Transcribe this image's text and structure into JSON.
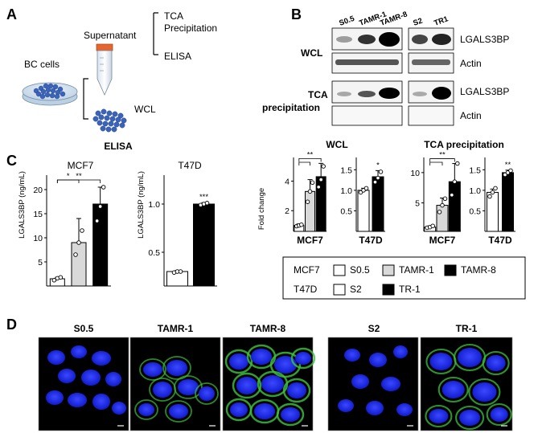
{
  "panels": {
    "a": "A",
    "b": "B",
    "c": "C",
    "d": "D"
  },
  "panel_a": {
    "supernatant": "Supernatant",
    "tca_line1": "TCA",
    "tca_line2": "Precipitation",
    "elisa": "ELISA",
    "bc_cells": "BC cells",
    "wcl": "WCL"
  },
  "panel_b": {
    "lanes_mcf7": [
      "S0.5",
      "TAMR-1",
      "TAMR-8"
    ],
    "lanes_t47d": [
      "S2",
      "TR1"
    ],
    "row_wcl": "WCL",
    "row_tca_line1": "TCA",
    "row_tca_line2": "precipitation",
    "band_lgals3bp": "LGALS3BP",
    "band_actin": "Actin",
    "wcl_chart_title": "WCL",
    "tca_chart_title": "TCA precipitation",
    "fold_change": "Fold change",
    "legend": {
      "mcf7": "MCF7",
      "t47d": "T47D",
      "s05": "S0.5",
      "tamr1": "TAMR-1",
      "tamr8": "TAMR-8",
      "s2": "S2",
      "tr1": "TR-1"
    }
  },
  "panel_c": {
    "title": "ELISA",
    "mcf7": "MCF7",
    "t47d": "T47D",
    "ylabel": "LGALS3BP (ng/mL)"
  },
  "panel_d": {
    "labels": [
      "S0.5",
      "TAMR-1",
      "TAMR-8",
      "S2",
      "TR-1"
    ]
  },
  "colors": {
    "white": "#ffffff",
    "gray": "#d9d9d9",
    "black": "#000000",
    "nucleus": "#1a2cff",
    "membrane": "#3fbf3f"
  },
  "chart_data": [
    {
      "type": "bar",
      "panel": "C",
      "title": "MCF7",
      "ylabel": "LGALS3BP (ng/mL)",
      "categories": [
        "S0.5",
        "TAMR-1",
        "TAMR-8"
      ],
      "values": [
        1.5,
        9,
        17
      ],
      "errors": [
        0.3,
        5,
        3.5
      ],
      "points": [
        [
          1.2,
          1.6,
          1.8
        ],
        [
          6.5,
          9.0,
          11.5
        ],
        [
          13.5,
          16.5,
          20.5
        ]
      ],
      "yticks": [
        5,
        10,
        15,
        20
      ],
      "ylim": [
        0,
        23
      ],
      "significance": [
        {
          "from": 0,
          "to": 1,
          "label": "*"
        },
        {
          "from": 0,
          "to": 2,
          "label": "**"
        }
      ]
    },
    {
      "type": "bar",
      "panel": "C",
      "title": "T47D",
      "ylabel": "LGALS3BP (ng/mL)",
      "categories": [
        "S2",
        "TR-1"
      ],
      "values": [
        0.3,
        1.0
      ],
      "errors": [
        0.01,
        0.015
      ],
      "points": [
        [
          0.29,
          0.3,
          0.3
        ],
        [
          0.99,
          1.0,
          1.01
        ]
      ],
      "yticks": [
        0.5,
        1.0
      ],
      "ylim": [
        0.15,
        1.3
      ],
      "significance": [
        {
          "at": 1,
          "label": "***"
        }
      ]
    },
    {
      "type": "bar",
      "panel": "B",
      "group": "WCL",
      "title": "MCF7",
      "ylabel": "Fold change",
      "categories": [
        "S0.5",
        "TAMR-1",
        "TAMR-8"
      ],
      "values": [
        1.0,
        3.3,
        4.3
      ],
      "errors": [
        0.1,
        0.8,
        0.9
      ],
      "points": [
        [
          0.95,
          1.0,
          1.05
        ],
        [
          2.6,
          3.3,
          3.9
        ],
        [
          3.6,
          4.1,
          5.0
        ]
      ],
      "yticks": [
        2,
        4
      ],
      "ylim": [
        0.6,
        5.6
      ],
      "significance": [
        {
          "from": 0,
          "to": 1,
          "label": ""
        },
        {
          "from": 0,
          "to": 2,
          "label": "**"
        }
      ]
    },
    {
      "type": "bar",
      "panel": "B",
      "group": "WCL",
      "title": "T47D",
      "categories": [
        "S2",
        "TR-1"
      ],
      "values": [
        1.0,
        1.33
      ],
      "errors": [
        0.05,
        0.15
      ],
      "points": [
        [
          0.95,
          1.0,
          1.05
        ],
        [
          1.2,
          1.3,
          1.45
        ]
      ],
      "yticks": [
        0.5,
        1.0,
        1.5
      ],
      "ylim": [
        0,
        1.8
      ],
      "significance": [
        {
          "at": 1,
          "label": "*"
        }
      ]
    },
    {
      "type": "bar",
      "panel": "B",
      "group": "TCA precipitation",
      "title": "MCF7",
      "categories": [
        "S0.5",
        "TAMR-1",
        "TAMR-8"
      ],
      "values": [
        1.0,
        4.6,
        8.5
      ],
      "errors": [
        0.2,
        1.2,
        3.0
      ],
      "points": [
        [
          0.9,
          1.0,
          1.2
        ],
        [
          3.5,
          4.6,
          5.7
        ],
        [
          6.3,
          8.5,
          11.5
        ]
      ],
      "yticks": [
        5,
        10
      ],
      "ylim": [
        0.3,
        12.5
      ],
      "significance": [
        {
          "from": 0,
          "to": 1,
          "label": ""
        },
        {
          "from": 0,
          "to": 2,
          "label": "**"
        }
      ]
    },
    {
      "type": "bar",
      "panel": "B",
      "group": "TCA precipitation",
      "title": "T47D",
      "categories": [
        "S2",
        "TR-1"
      ],
      "values": [
        0.95,
        1.43
      ],
      "errors": [
        0.08,
        0.06
      ],
      "points": [
        [
          0.85,
          0.95,
          1.05
        ],
        [
          1.38,
          1.43,
          1.48
        ]
      ],
      "yticks": [
        0.5,
        1.0,
        1.5
      ],
      "ylim": [
        0,
        1.8
      ],
      "significance": [
        {
          "at": 1,
          "label": "**"
        }
      ]
    }
  ]
}
